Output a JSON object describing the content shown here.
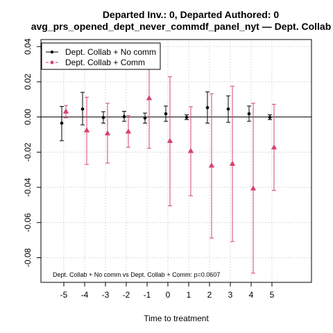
{
  "chart_data": {
    "type": "scatter",
    "title": "Departed Inv.: 0, Departed Authored: 0",
    "subtitle": "avg_prs_opened_dept_never_commdf_panel_nyt — Dept. Collab",
    "xlabel": "Time to treatment",
    "ylabel": "",
    "x": [
      -5,
      -4,
      -3,
      -2,
      -1,
      0,
      1,
      2,
      3,
      4,
      5
    ],
    "xlim": [
      -6.1,
      6.9
    ],
    "ylim": [
      -0.094,
      0.044
    ],
    "yticks": [
      -0.08,
      -0.06,
      -0.04,
      -0.02,
      0.0,
      0.02,
      0.04
    ],
    "ytick_labels": [
      "-0.08",
      "-0.06",
      "-0.04",
      "-0.02",
      "0.00",
      "0.02",
      "0.04"
    ],
    "xtick_labels": [
      "-5",
      "-4",
      "-3",
      "-2",
      "-1",
      "0",
      "1",
      "2",
      "3",
      "4",
      "5"
    ],
    "grid": true,
    "legend_position": "top-left",
    "series": [
      {
        "name": "Dept. Collab + No comm",
        "color": "#000000",
        "marker": "circle",
        "offset": -0.1,
        "values": [
          -0.0035,
          0.0045,
          -0.0003,
          0.0002,
          -0.0006,
          0.0018,
          -0.0002,
          0.0053,
          0.0045,
          0.0018,
          -0.0002
        ],
        "lower": [
          -0.0135,
          -0.0045,
          -0.0035,
          -0.0025,
          -0.0035,
          -0.0025,
          -0.0015,
          -0.0035,
          -0.003,
          -0.0025,
          -0.0015
        ],
        "upper": [
          0.006,
          0.014,
          0.003,
          0.0032,
          0.0022,
          0.0062,
          0.0012,
          0.0143,
          0.012,
          0.0062,
          0.0012
        ]
      },
      {
        "name": "Dept. Collab + Comm",
        "color": "#d6446b",
        "marker": "triangle",
        "offset": 0.1,
        "values": [
          0.0032,
          -0.0075,
          -0.0092,
          -0.0082,
          0.0108,
          -0.0135,
          -0.0192,
          -0.0275,
          -0.0265,
          -0.0405,
          -0.0172
        ],
        "lower": [
          -0.0005,
          -0.027,
          -0.0262,
          -0.0172,
          -0.0178,
          -0.0505,
          -0.0448,
          -0.0688,
          -0.0708,
          -0.0888,
          -0.0418
        ],
        "upper": [
          0.0065,
          0.0112,
          0.0078,
          0.0008,
          0.0395,
          0.0228,
          0.0058,
          0.0132,
          0.0175,
          0.0078,
          0.0072
        ]
      }
    ],
    "annotation": "Dept. Collab + No comm vs Dept. Collab + Comm: p=0.0607"
  }
}
